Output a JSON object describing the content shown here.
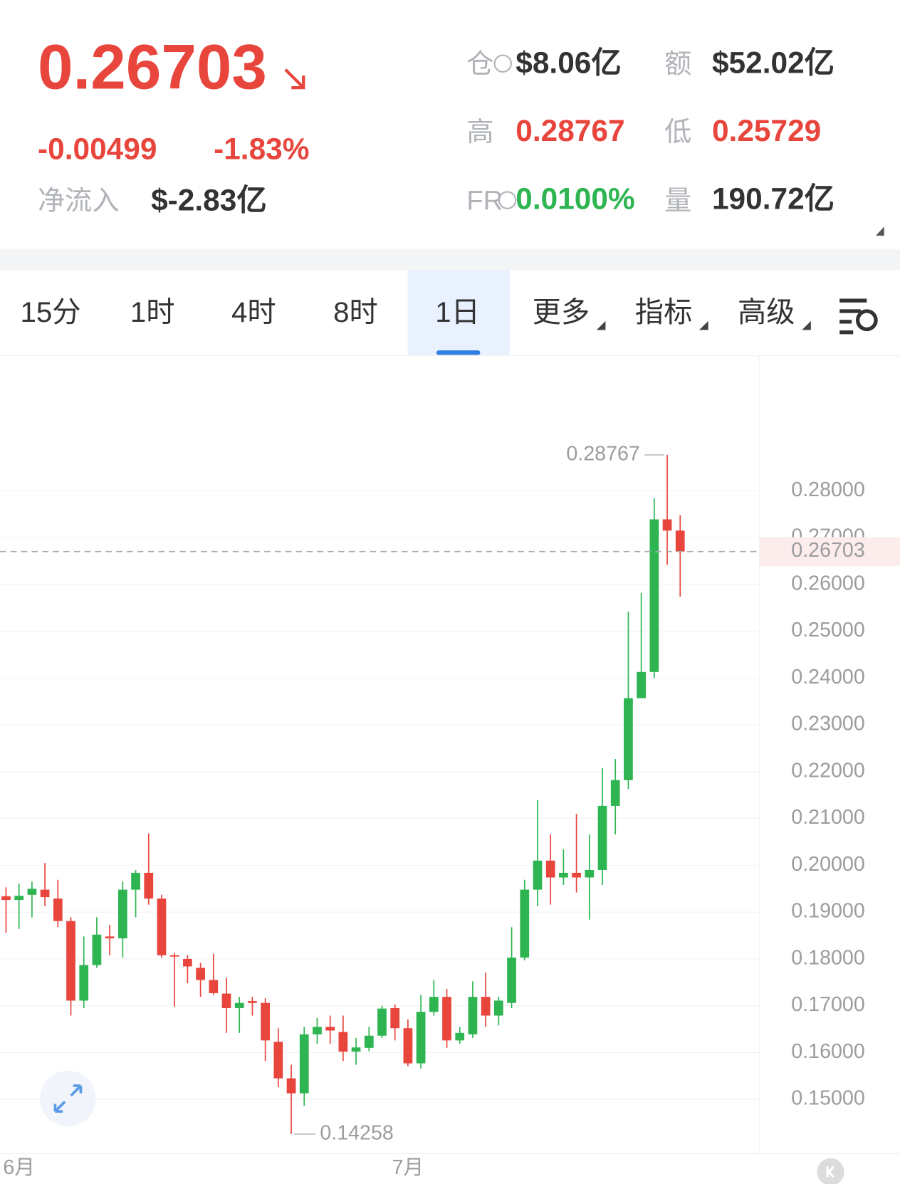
{
  "header": {
    "price": "0.26703",
    "change": "-0.00499",
    "change_pct": "-1.83%",
    "net_inflow_label": "净流入",
    "net_inflow": "$-2.83亿",
    "stats": [
      {
        "label": "仓",
        "value": "$8.06亿"
      },
      {
        "label": "额",
        "value": "$52.02亿"
      },
      {
        "label": "高",
        "value": "0.28767"
      },
      {
        "label": "低",
        "value": "0.25729"
      },
      {
        "label": "FR",
        "value": "0.0100%"
      },
      {
        "label": "量",
        "value": "190.72亿"
      }
    ]
  },
  "tabs": {
    "items": [
      "15分",
      "1时",
      "4时",
      "8时",
      "1日",
      "更多",
      "指标",
      "高级"
    ],
    "selected": 4
  },
  "chart_data": {
    "type": "candlestick",
    "up_color": "#2eb552",
    "down_color": "#e8453d",
    "categories": [
      null,
      "6月",
      null,
      null,
      null,
      null,
      null,
      null,
      null,
      null,
      null,
      null,
      null,
      null,
      null,
      null,
      null,
      null,
      null,
      null,
      null,
      null,
      null,
      null,
      null,
      null,
      null,
      null,
      null,
      null,
      null,
      "7月",
      null,
      null,
      null,
      null,
      null,
      null,
      null,
      null,
      null,
      null,
      null,
      null,
      null,
      null,
      null,
      null,
      null,
      null,
      null,
      null,
      null
    ],
    "open": [
      0.1934,
      0.1926,
      0.1937,
      0.1948,
      0.1929,
      0.1881,
      0.1711,
      0.1787,
      0.1848,
      0.1844,
      0.1948,
      0.1984,
      0.1929,
      0.1808,
      0.18,
      0.1781,
      0.1755,
      0.1726,
      0.1695,
      0.171,
      0.1706,
      0.1623,
      0.1545,
      0.1513,
      0.1639,
      0.1655,
      0.1644,
      0.1602,
      0.161,
      0.1636,
      0.1695,
      0.1652,
      0.1577,
      0.1687,
      0.1719,
      0.1626,
      0.1639,
      0.1719,
      0.1679,
      0.1706,
      0.1803,
      0.1948,
      0.201,
      0.1974,
      0.1984,
      0.1974,
      0.199,
      0.2127,
      0.2182,
      0.2357,
      0.2413,
      0.2739,
      0.2715
    ],
    "high": [
      0.1953,
      0.1961,
      0.1965,
      0.2005,
      0.1969,
      0.1889,
      0.1848,
      0.1889,
      0.1873,
      0.1965,
      0.199,
      0.2068,
      0.1937,
      0.1813,
      0.1808,
      0.1792,
      0.1811,
      0.176,
      0.1719,
      0.1719,
      0.1716,
      0.1652,
      0.1574,
      0.1655,
      0.1674,
      0.1679,
      0.1679,
      0.1631,
      0.1655,
      0.17,
      0.1703,
      0.1671,
      0.1723,
      0.1755,
      0.1736,
      0.1655,
      0.1752,
      0.1771,
      0.1719,
      0.1868,
      0.1969,
      0.2139,
      0.2066,
      0.2034,
      0.211,
      0.2066,
      0.2208,
      0.2227,
      0.2542,
      0.2582,
      0.2784,
      0.28767,
      0.2748
    ],
    "low": [
      0.1856,
      0.1864,
      0.1889,
      0.1913,
      0.1868,
      0.1679,
      0.1695,
      0.1781,
      0.1808,
      0.1803,
      0.1889,
      0.1916,
      0.1803,
      0.1698,
      0.1748,
      0.1719,
      0.1723,
      0.1642,
      0.1642,
      0.1679,
      0.1582,
      0.1526,
      0.14258,
      0.1486,
      0.1619,
      0.1619,
      0.1582,
      0.1574,
      0.1603,
      0.1631,
      0.1626,
      0.1571,
      0.1566,
      0.1679,
      0.161,
      0.1619,
      0.1631,
      0.1655,
      0.1658,
      0.1695,
      0.1797,
      0.1913,
      0.1916,
      0.1958,
      0.1942,
      0.1884,
      0.1958,
      0.2066,
      0.2163,
      0.2357,
      0.24,
      0.2642,
      0.2574
    ],
    "close": [
      0.1926,
      0.1935,
      0.195,
      0.1932,
      0.1881,
      0.1711,
      0.1787,
      0.1852,
      0.1844,
      0.1948,
      0.1984,
      0.1929,
      0.1808,
      0.1805,
      0.1784,
      0.1755,
      0.1727,
      0.1695,
      0.1706,
      0.1706,
      0.1626,
      0.1545,
      0.1513,
      0.1639,
      0.1655,
      0.1647,
      0.1602,
      0.1611,
      0.1636,
      0.1694,
      0.1652,
      0.1577,
      0.1687,
      0.1719,
      0.1626,
      0.1642,
      0.1719,
      0.1679,
      0.1711,
      0.1803,
      0.1948,
      0.201,
      0.1974,
      0.1984,
      0.1974,
      0.199,
      0.2127,
      0.2182,
      0.2357,
      0.2413,
      0.2739,
      0.2715,
      0.26703
    ],
    "ylim": [
      0.1384,
      0.3087
    ],
    "yticks": [
      {
        "value": 0.15,
        "label": "0.15000"
      },
      {
        "value": 0.16,
        "label": "0.16000"
      },
      {
        "value": 0.17,
        "label": "0.17000"
      },
      {
        "value": 0.18,
        "label": "0.18000"
      },
      {
        "value": 0.19,
        "label": "0.19000"
      },
      {
        "value": 0.2,
        "label": "0.20000"
      },
      {
        "value": 0.21,
        "label": "0.21000"
      },
      {
        "value": 0.22,
        "label": "0.22000"
      },
      {
        "value": 0.23,
        "label": "0.23000"
      },
      {
        "value": 0.24,
        "label": "0.24000"
      },
      {
        "value": 0.25,
        "label": "0.25000"
      },
      {
        "value": 0.26,
        "label": "0.26000"
      },
      {
        "value": 0.27,
        "label": "0.27000"
      },
      {
        "value": 0.28,
        "label": "0.28000"
      }
    ],
    "grid": true,
    "high_marker": 0.28767,
    "low_marker": 0.14258,
    "last_price": 0.26703
  }
}
